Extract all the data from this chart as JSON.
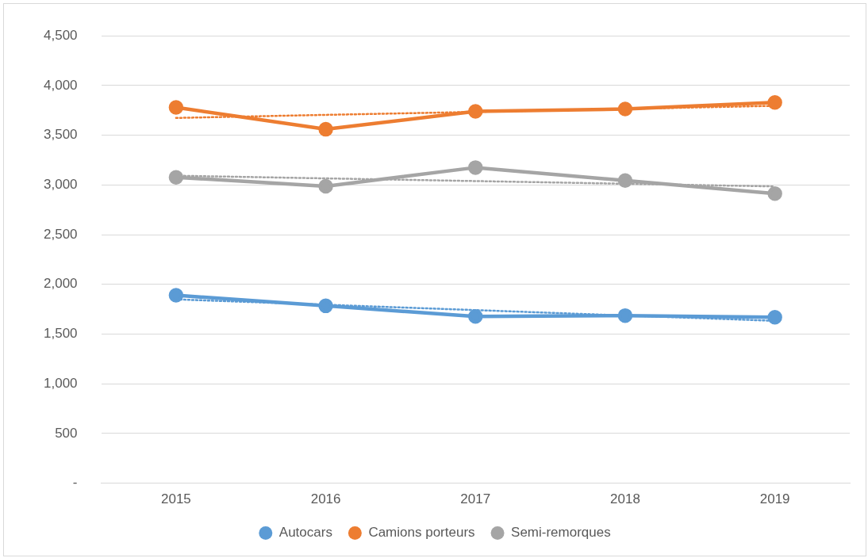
{
  "chart_data": {
    "type": "line",
    "categories": [
      "2015",
      "2016",
      "2017",
      "2018",
      "2019"
    ],
    "ylim": [
      0,
      4500
    ],
    "yticks": [
      {
        "value": 0,
        "label": "-"
      },
      {
        "value": 500,
        "label": "500"
      },
      {
        "value": 1000,
        "label": "1,000"
      },
      {
        "value": 1500,
        "label": "1,500"
      },
      {
        "value": 2000,
        "label": "2,000"
      },
      {
        "value": 2500,
        "label": "2,500"
      },
      {
        "value": 3000,
        "label": "3,000"
      },
      {
        "value": 3500,
        "label": "3,500"
      },
      {
        "value": 4000,
        "label": "4,000"
      },
      {
        "value": 4500,
        "label": "4,500"
      }
    ],
    "grid": "y",
    "legend": "bottom",
    "marker": "circle",
    "line_style": "solid",
    "series": [
      {
        "name": "Autocars",
        "color": "#5b9bd5",
        "values": [
          1890,
          1784,
          1677,
          1686,
          1669
        ]
      },
      {
        "name": "Camions porteurs",
        "color": "#ed7d31",
        "values": [
          3780,
          3560,
          3740,
          3764,
          3830
        ]
      },
      {
        "name": "Semi-remorques",
        "color": "#a5a5a5",
        "values": [
          3077,
          2987,
          3175,
          3044,
          2913
        ]
      },
      {
        "color": "#5b9bd5",
        "values": [
          1849,
          1795,
          1741,
          1687,
          1633
        ],
        "marker": "none",
        "line_style": "dotted"
      },
      {
        "color": "#ed7d31",
        "values": [
          3674,
          3705,
          3735,
          3765,
          3796
        ],
        "marker": "none",
        "line_style": "dotted"
      },
      {
        "color": "#a5a5a5",
        "values": [
          3093,
          3066,
          3039,
          3012,
          2985
        ],
        "marker": "none",
        "line_style": "dotted"
      }
    ]
  }
}
